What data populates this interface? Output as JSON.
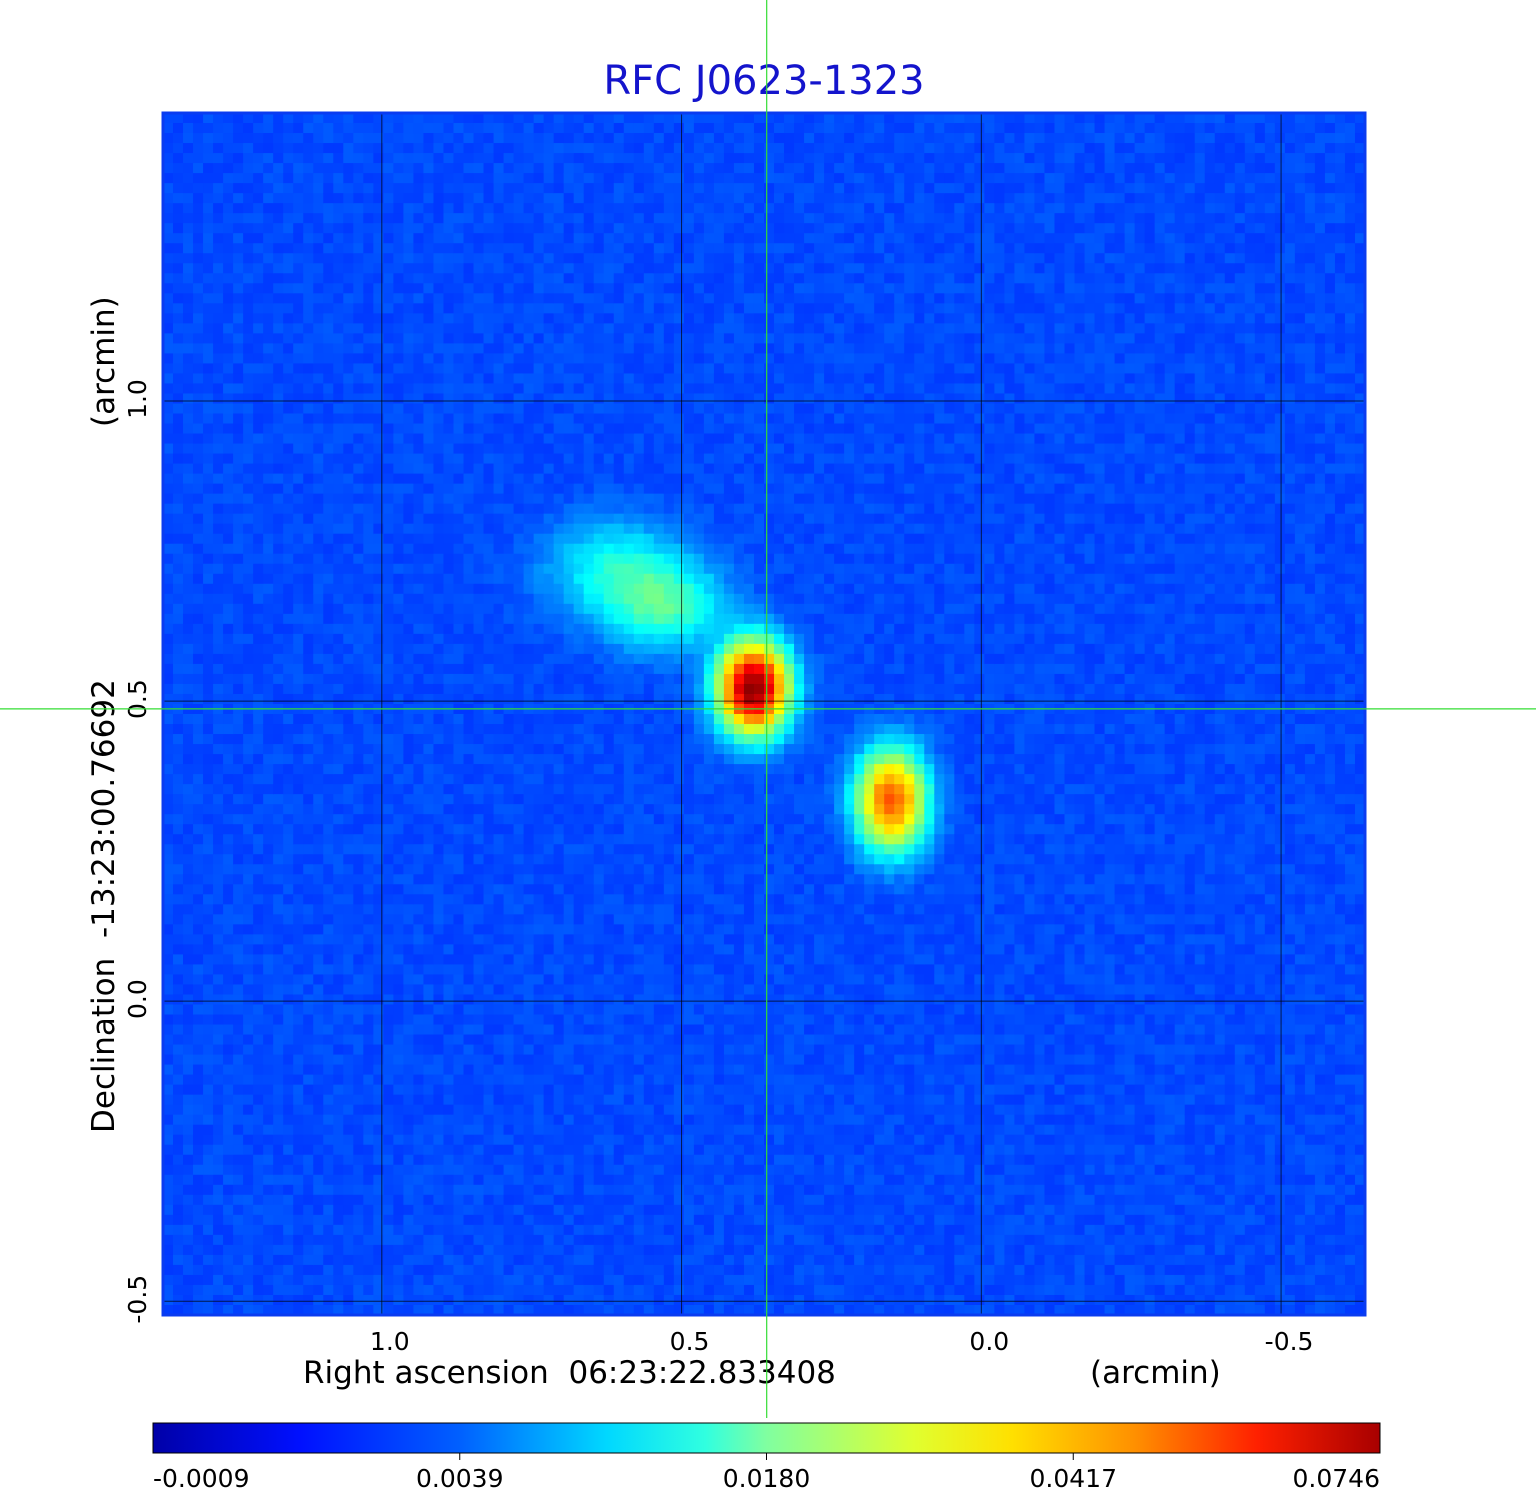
{
  "chart_data": {
    "type": "heatmap",
    "title": "RFC J0623-1323",
    "xlabel": "Right ascension  06:23:22.833408",
    "xunit": "(arcmin)",
    "ylabel": "Declination  -13:23:00.76692",
    "yunit": "(arcmin)",
    "xlim": [
      1.365,
      -0.64
    ],
    "ylim": [
      -0.523,
      1.48
    ],
    "xticks": [
      {
        "value": 1.0,
        "label": "1.0"
      },
      {
        "value": 0.5,
        "label": "0.5"
      },
      {
        "value": 0.0,
        "label": "0.0"
      },
      {
        "value": -0.5,
        "label": "-0.5"
      }
    ],
    "yticks": [
      {
        "value": -0.5,
        "label": "-0.5"
      },
      {
        "value": 0.0,
        "label": "0.0"
      },
      {
        "value": 0.5,
        "label": "0.5"
      },
      {
        "value": 1.0,
        "label": "1.0"
      }
    ],
    "grid": true,
    "crosshair": {
      "x": 0.358,
      "y": 0.487,
      "color": "#33dd33"
    },
    "colormap": "jet",
    "colorbar": {
      "position": "bottom",
      "tick_labels": [
        "-0.0009",
        "0.0039",
        "0.0180",
        "0.0417",
        "0.0746"
      ]
    },
    "components": [
      {
        "x": 0.38,
        "y": 0.522,
        "peak": 0.0746,
        "sigma_x": 0.035,
        "sigma_y": 0.045
      },
      {
        "x": 0.15,
        "y": 0.335,
        "peak": 0.045,
        "sigma_x": 0.035,
        "sigma_y": 0.05
      },
      {
        "x": 0.53,
        "y": 0.66,
        "peak": 0.012,
        "sigma_x": 0.06,
        "sigma_y": 0.045
      },
      {
        "x": 0.61,
        "y": 0.72,
        "peak": 0.008,
        "sigma_x": 0.07,
        "sigma_y": 0.05
      }
    ]
  }
}
